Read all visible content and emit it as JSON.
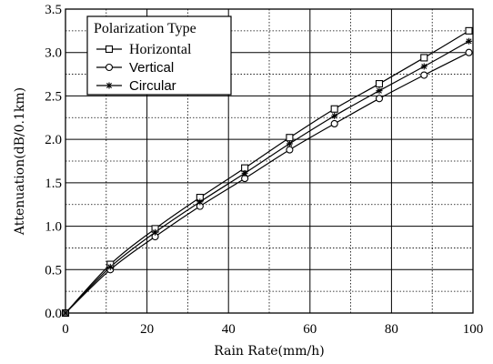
{
  "chart_data": {
    "type": "line",
    "xlabel": "Rain Rate(mm/h)",
    "ylabel": "Attenuation(dB/0.1km)",
    "xlim": [
      0,
      100
    ],
    "ylim": [
      0,
      3.5
    ],
    "x_ticks": [
      "0",
      "20",
      "40",
      "60",
      "80",
      "100"
    ],
    "y_ticks": [
      "0.0",
      "0.5",
      "1.0",
      "1.5",
      "2.0",
      "2.5",
      "3.0",
      "3.5"
    ],
    "grid": "on",
    "legend_title": "Polarization Type",
    "legend_position": "top-left",
    "x": [
      0,
      11,
      22,
      33,
      44,
      55,
      66,
      77,
      88,
      99
    ],
    "series": [
      {
        "name": "Horizontal",
        "marker": "square",
        "values": [
          0.0,
          0.56,
          0.97,
          1.33,
          1.67,
          2.02,
          2.35,
          2.64,
          2.94,
          3.25
        ]
      },
      {
        "name": "Vertical",
        "marker": "circle",
        "values": [
          0.0,
          0.5,
          0.88,
          1.23,
          1.55,
          1.88,
          2.18,
          2.47,
          2.74,
          3.0
        ]
      },
      {
        "name": "Circular",
        "marker": "asterisk",
        "values": [
          0.0,
          0.53,
          0.93,
          1.28,
          1.61,
          1.95,
          2.27,
          2.56,
          2.84,
          3.13
        ]
      }
    ]
  }
}
